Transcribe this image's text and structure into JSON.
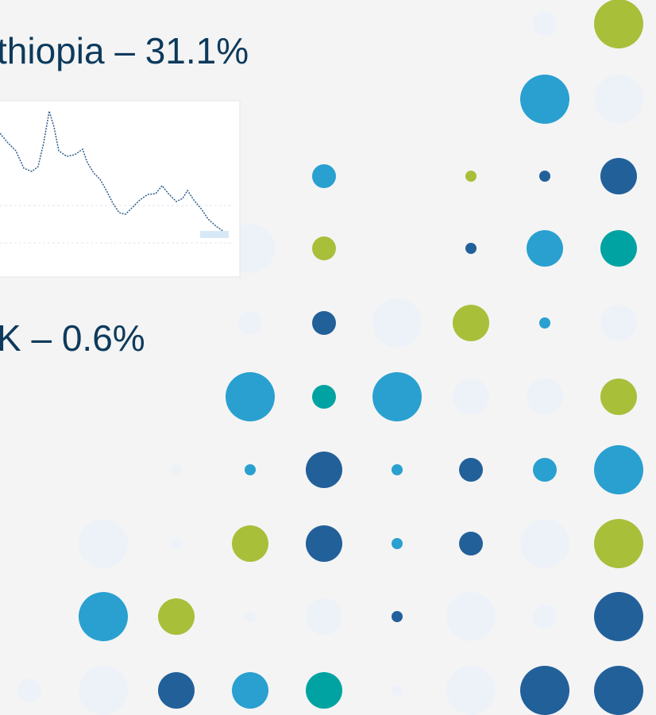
{
  "slide": {
    "items": [
      "thiopia – 31.1%",
      "K – 0.6%"
    ]
  }
}
